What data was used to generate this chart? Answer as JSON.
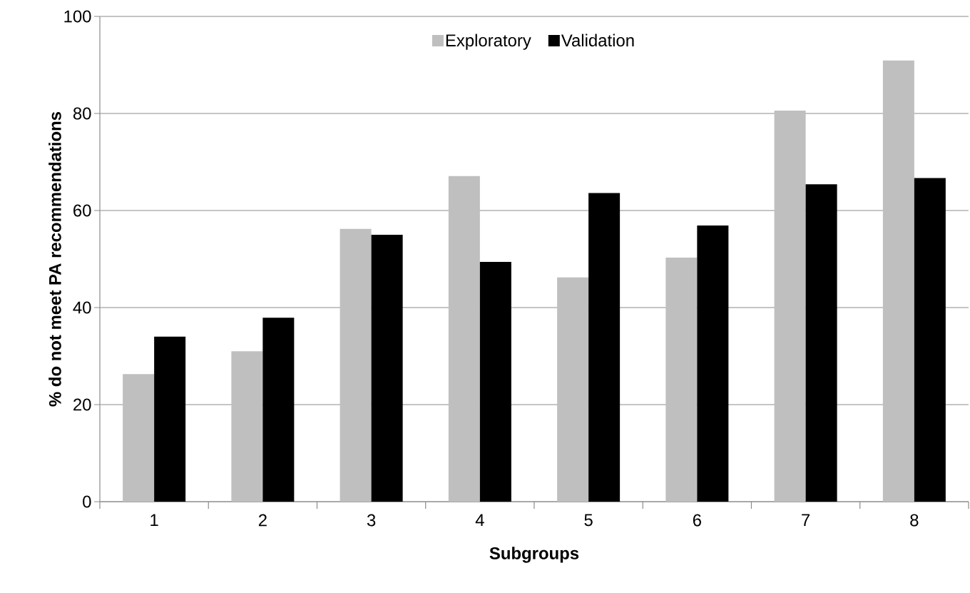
{
  "chart_data": {
    "type": "bar",
    "xlabel": "Subgroups",
    "ylabel": "% do not meet PA recommendations",
    "categories": [
      "1",
      "2",
      "3",
      "4",
      "5",
      "6",
      "7",
      "8"
    ],
    "series": [
      {
        "name": "Exploratory",
        "color": "#bfbfbf",
        "values": [
          26.3,
          31.0,
          56.2,
          67.1,
          46.2,
          50.3,
          80.6,
          90.9
        ]
      },
      {
        "name": "Validation",
        "color": "#000000",
        "values": [
          34.0,
          37.9,
          55.0,
          49.4,
          63.6,
          56.9,
          65.4,
          66.7
        ]
      }
    ],
    "ylim": [
      0,
      100
    ],
    "yticks": [
      0,
      20,
      40,
      60,
      80,
      100
    ],
    "grid": "y",
    "legend": "top"
  }
}
